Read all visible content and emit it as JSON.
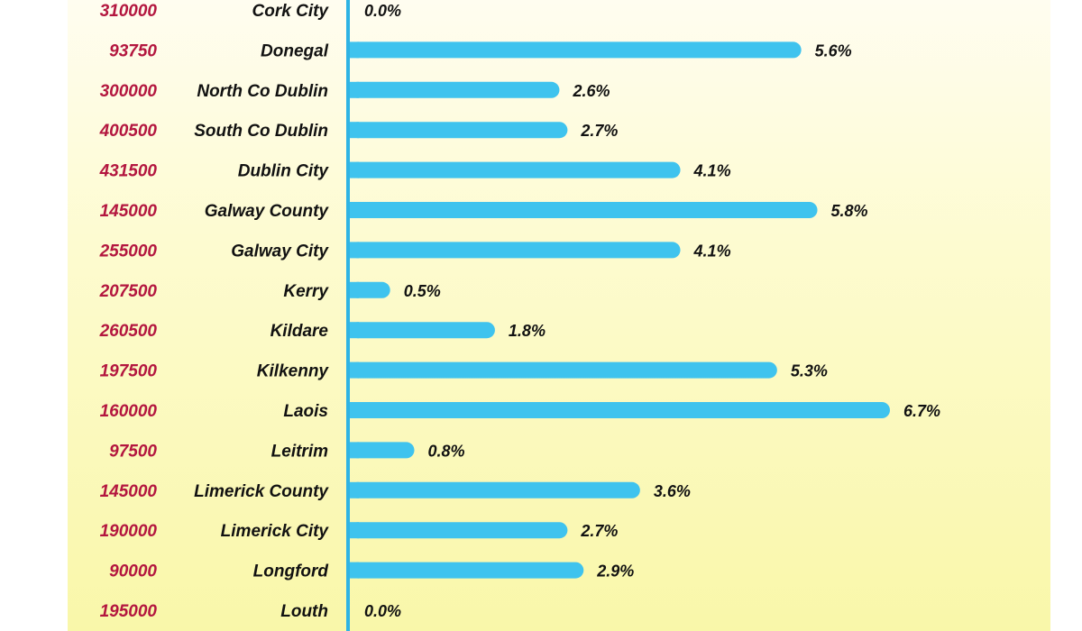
{
  "colors": {
    "bar": "#3fc3ee",
    "axis": "#2eb3e4",
    "price_text": "#b3163f",
    "label_text": "#111111",
    "panel_top": "#fffdf0",
    "panel_bottom": "#f9f7a9"
  },
  "chart_data": {
    "type": "bar",
    "orientation": "horizontal",
    "categories": [
      "Cork City",
      "Donegal",
      "North Co Dublin",
      "South Co Dublin",
      "Dublin City",
      "Galway County",
      "Galway City",
      "Kerry",
      "Kildare",
      "Kilkenny",
      "Laois",
      "Leitrim",
      "Limerick County",
      "Limerick City",
      "Longford",
      "Louth"
    ],
    "prices": [
      "310000",
      "93750",
      "300000",
      "400500",
      "431500",
      "145000",
      "255000",
      "207500",
      "260500",
      "197500",
      "160000",
      "97500",
      "145000",
      "190000",
      "90000",
      "195000"
    ],
    "values": [
      0.0,
      5.6,
      2.6,
      2.7,
      4.1,
      5.8,
      4.1,
      0.5,
      1.8,
      5.3,
      6.7,
      0.8,
      3.6,
      2.7,
      2.9,
      0.0
    ],
    "value_labels": [
      "0.0%",
      "5.6%",
      "2.6%",
      "2.7%",
      "4.1%",
      "5.8%",
      "4.1%",
      "0.5%",
      "1.8%",
      "5.3%",
      "6.7%",
      "0.8%",
      "3.6%",
      "2.7%",
      "2.9%",
      "0.0%"
    ],
    "xlim": [
      0,
      6.7
    ]
  }
}
